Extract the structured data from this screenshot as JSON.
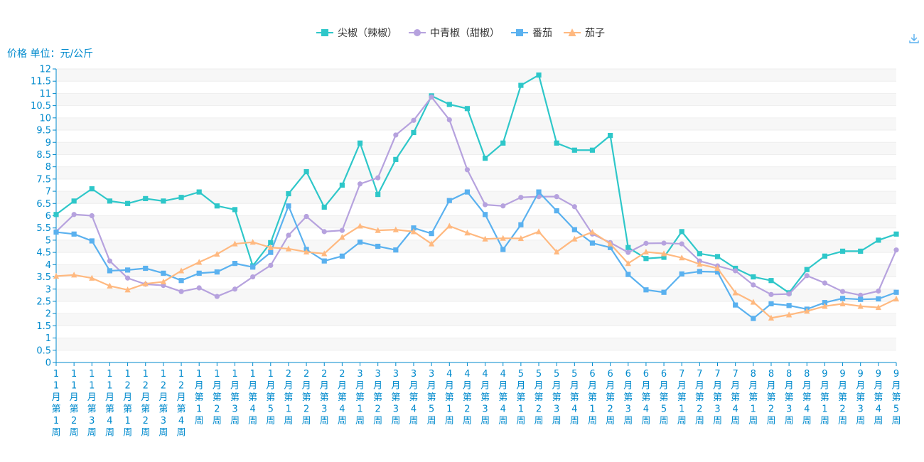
{
  "chart_data": {
    "type": "line",
    "title": "",
    "ylabel": "价格 单位：元/公斤",
    "ylim": [
      0,
      12
    ],
    "ytick_step": 0.5,
    "grid": "horizontal banded",
    "legend_position": "top-center",
    "categories": [
      "11月第1周",
      "11月第2周",
      "11月第3周",
      "11月第4周",
      "12月第1周",
      "12月第2周",
      "12月第3周",
      "12月第4周",
      "1月第1周",
      "1月第2周",
      "1月第3周",
      "1月第4周",
      "1月第5周",
      "2月第1周",
      "2月第2周",
      "2月第3周",
      "2月第4周",
      "3月第1周",
      "3月第2周",
      "3月第3周",
      "3月第4周",
      "3月第5周",
      "4月第1周",
      "4月第2周",
      "4月第3周",
      "4月第4周",
      "5月第1周",
      "5月第2周",
      "5月第3周",
      "5月第4周",
      "6月第1周",
      "6月第2周",
      "6月第3周",
      "6月第4周",
      "6月第5周",
      "7月第1周",
      "7月第2周",
      "7月第3周",
      "7月第4周",
      "8月第1周",
      "8月第2周",
      "8月第3周",
      "8月第4周",
      "9月第1周",
      "9月第2周",
      "9月第3周",
      "9月第4周",
      "9月第5周"
    ],
    "series": [
      {
        "name": "尖椒（辣椒）",
        "color": "#2ec7c9",
        "marker": "square",
        "values": [
          6.05,
          6.6,
          7.1,
          6.6,
          6.5,
          6.7,
          6.6,
          6.75,
          6.97,
          6.4,
          6.25,
          3.95,
          4.9,
          6.9,
          7.8,
          6.35,
          7.25,
          8.97,
          6.87,
          8.3,
          9.4,
          10.9,
          10.55,
          10.38,
          8.35,
          8.97,
          11.33,
          11.75,
          8.97,
          8.68,
          8.68,
          9.28,
          4.7,
          4.25,
          4.3,
          5.35,
          4.45,
          4.33,
          3.85,
          3.5,
          3.35,
          2.85,
          3.8,
          4.35,
          4.55,
          4.55,
          5.0,
          5.25
        ]
      },
      {
        "name": "中青椒（甜椒）",
        "color": "#b6a2de",
        "marker": "circle",
        "values": [
          5.35,
          6.05,
          6.0,
          4.15,
          3.45,
          3.2,
          3.15,
          2.9,
          3.05,
          2.7,
          3.0,
          3.5,
          3.97,
          5.2,
          5.97,
          5.35,
          5.4,
          7.3,
          7.55,
          9.3,
          9.9,
          10.85,
          9.92,
          7.88,
          6.45,
          6.4,
          6.75,
          6.78,
          6.78,
          6.37,
          5.25,
          4.9,
          4.5,
          4.87,
          4.88,
          4.85,
          4.15,
          3.95,
          3.75,
          3.17,
          2.78,
          2.8,
          3.55,
          3.25,
          2.9,
          2.75,
          2.92,
          4.6
        ]
      },
      {
        "name": "番茄",
        "color": "#5ab1ef",
        "marker": "square",
        "values": [
          5.33,
          5.25,
          4.97,
          3.75,
          3.78,
          3.85,
          3.65,
          3.35,
          3.65,
          3.7,
          4.05,
          3.9,
          4.5,
          6.4,
          4.62,
          4.15,
          4.35,
          4.92,
          4.75,
          4.6,
          5.5,
          5.27,
          6.62,
          6.97,
          6.05,
          4.62,
          5.63,
          6.97,
          6.2,
          5.43,
          4.88,
          4.7,
          3.6,
          2.97,
          2.87,
          3.62,
          3.72,
          3.7,
          2.35,
          1.8,
          2.4,
          2.33,
          2.18,
          2.45,
          2.62,
          2.58,
          2.6,
          2.87
        ]
      },
      {
        "name": "茄子",
        "color": "#ffb980",
        "marker": "triangle",
        "values": [
          3.53,
          3.58,
          3.45,
          3.13,
          2.97,
          3.22,
          3.3,
          3.75,
          4.1,
          4.43,
          4.85,
          4.92,
          4.7,
          4.65,
          4.52,
          4.45,
          5.12,
          5.58,
          5.4,
          5.43,
          5.35,
          4.85,
          5.58,
          5.3,
          5.05,
          5.08,
          5.07,
          5.35,
          4.52,
          5.05,
          5.33,
          4.85,
          4.05,
          4.52,
          4.45,
          4.28,
          4.02,
          3.85,
          2.85,
          2.47,
          1.82,
          1.95,
          2.1,
          2.3,
          2.4,
          2.3,
          2.25,
          2.6
        ]
      }
    ]
  },
  "toolbox": {
    "download_icon": "download-icon"
  },
  "colors": {
    "axis": "#008acd",
    "grid_band": "#f7f7f7",
    "grid_line": "#eeeeee"
  }
}
